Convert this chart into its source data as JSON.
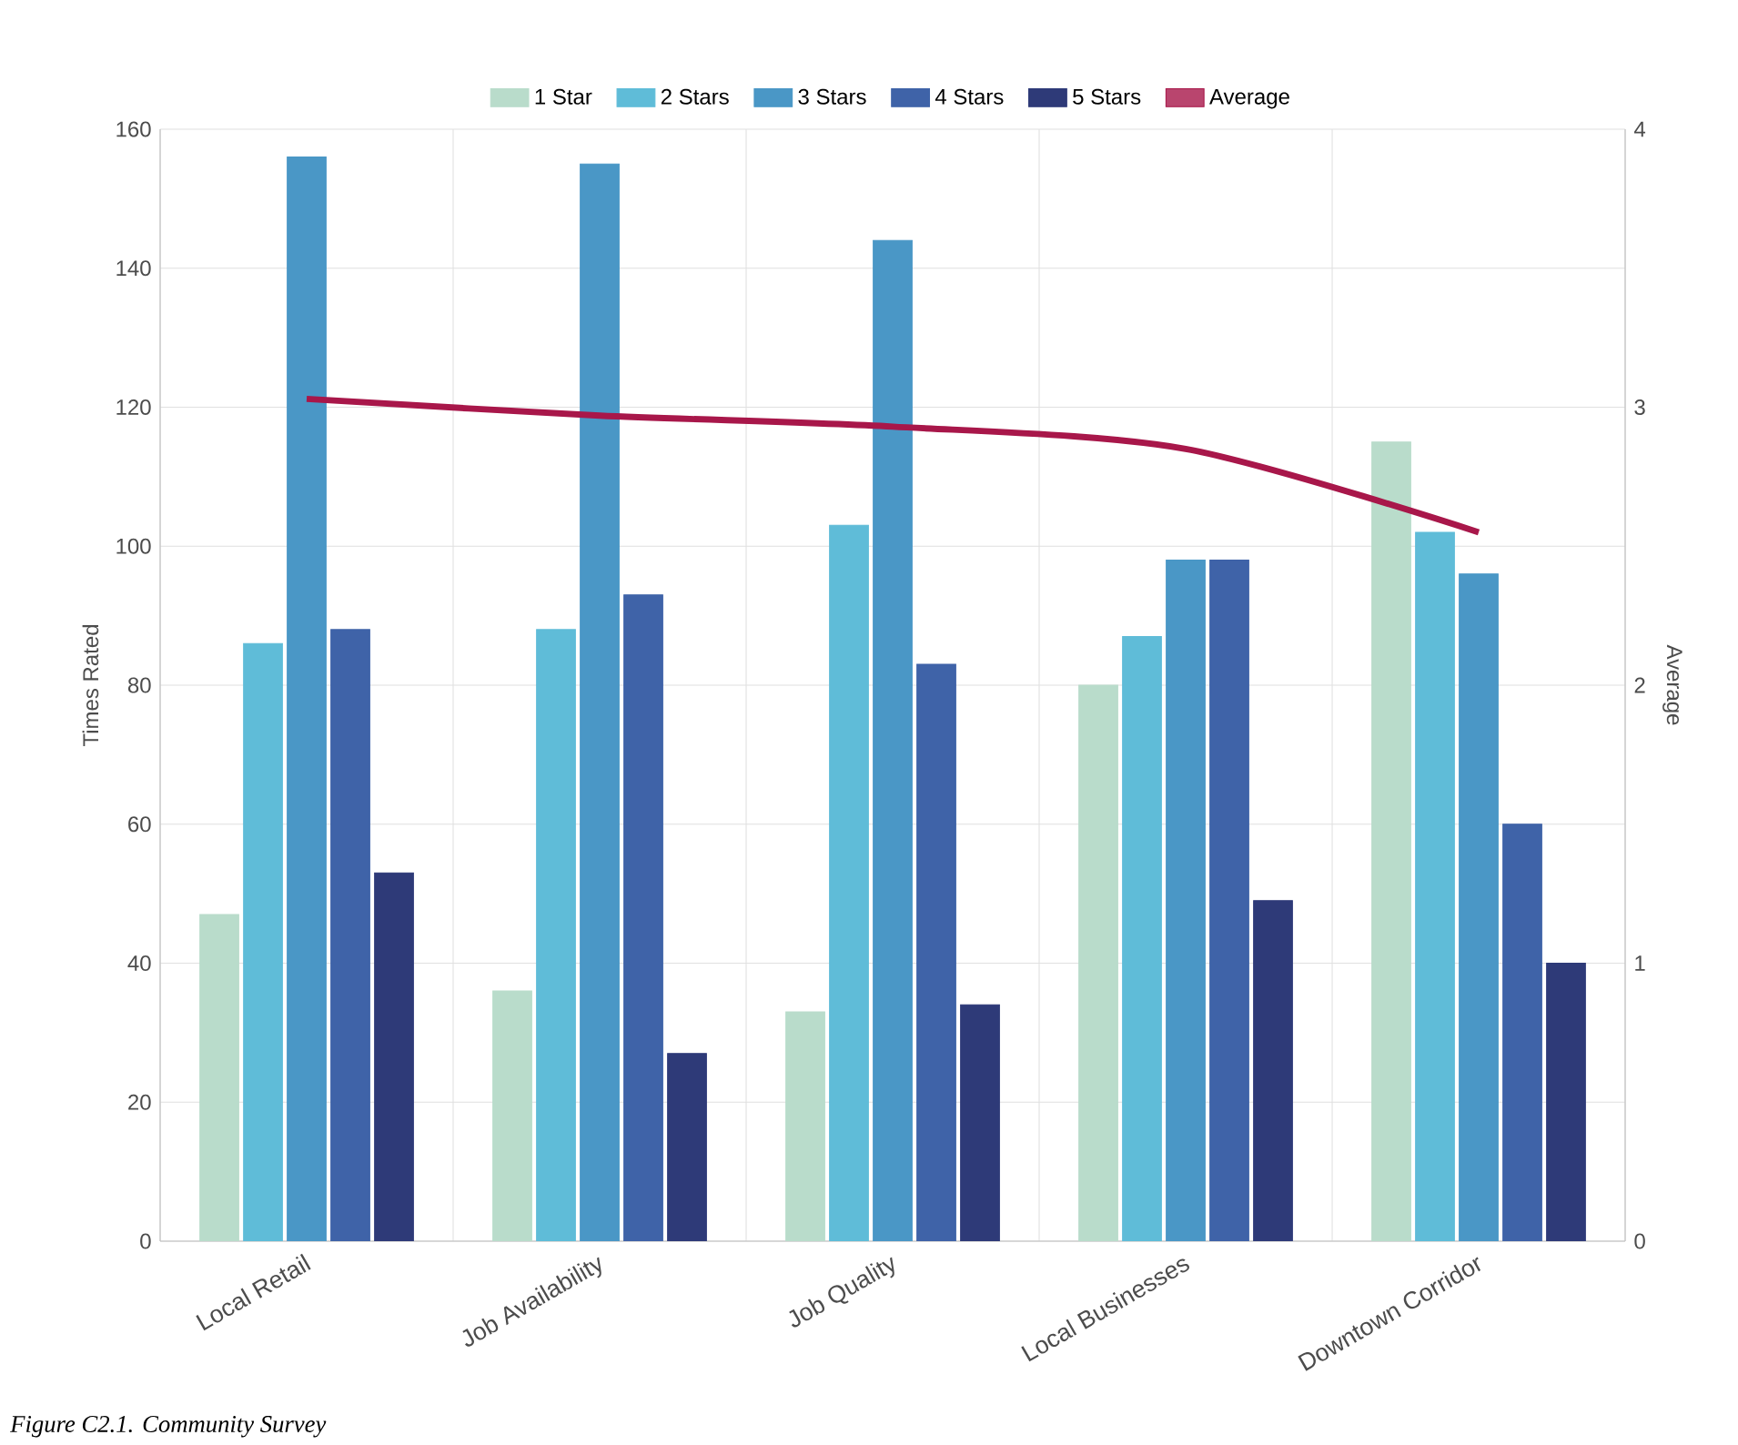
{
  "chart_data": {
    "type": "bar",
    "categories": [
      "Local Retail",
      "Job Availability",
      "Job Quality",
      "Local Businesses",
      "Downtown Corridor"
    ],
    "series": [
      {
        "name": "1 Star",
        "color": "#b9dccb",
        "values": [
          47,
          36,
          33,
          80,
          115
        ]
      },
      {
        "name": "2 Stars",
        "color": "#5fbcd8",
        "values": [
          86,
          88,
          103,
          87,
          102
        ]
      },
      {
        "name": "3 Stars",
        "color": "#4a97c6",
        "values": [
          156,
          155,
          144,
          98,
          96
        ]
      },
      {
        "name": "4 Stars",
        "color": "#3f63a8",
        "values": [
          88,
          93,
          83,
          98,
          60
        ]
      },
      {
        "name": "5 Stars",
        "color": "#2e3a78",
        "values": [
          53,
          27,
          34,
          49,
          40
        ]
      },
      {
        "name": "Average",
        "color": "#a8174a",
        "type": "line",
        "axis": "y2",
        "values": [
          3.03,
          2.97,
          2.93,
          2.85,
          2.55
        ]
      }
    ],
    "ylabel": "Times Rated",
    "y2label": "Average",
    "ylim": [
      0,
      160
    ],
    "yticks": [
      0,
      20,
      40,
      60,
      80,
      100,
      120,
      140,
      160
    ],
    "y2lim": [
      0,
      4
    ],
    "y2ticks": [
      0,
      1,
      2,
      3,
      4
    ],
    "grid": true,
    "legend": "top",
    "marker": "none",
    "annotations": [
      "Figure C2.1. Community Survey"
    ]
  }
}
